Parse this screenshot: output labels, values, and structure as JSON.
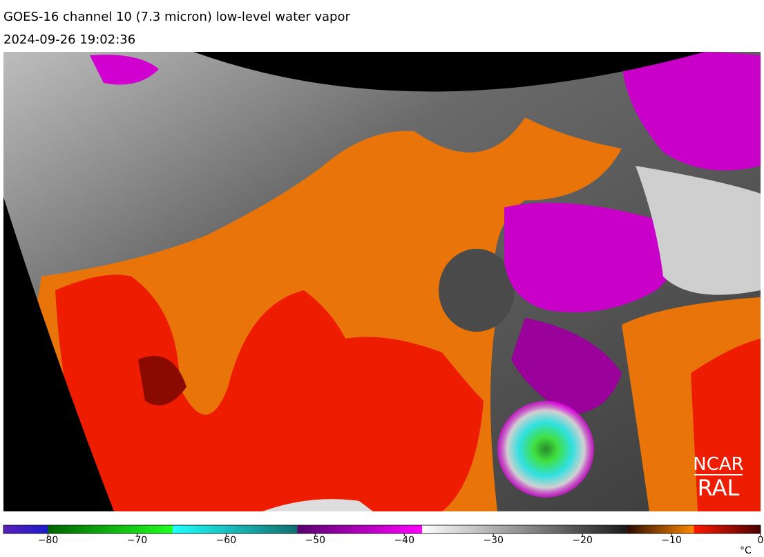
{
  "header": {
    "title": "GOES-16 channel 10 (7.3 micron) low-level water vapor",
    "timestamp": "2024-09-26 19:02:36"
  },
  "logo": {
    "top": "NCAR",
    "bottom": "RAL"
  },
  "colorbar": {
    "range": [
      -85,
      0
    ],
    "ticks": [
      {
        "value": -80,
        "label": "−80"
      },
      {
        "value": -70,
        "label": "−70"
      },
      {
        "value": -60,
        "label": "−60"
      },
      {
        "value": -50,
        "label": "−50"
      },
      {
        "value": -40,
        "label": "−40"
      },
      {
        "value": -30,
        "label": "−30"
      },
      {
        "value": -20,
        "label": "−20"
      },
      {
        "value": -10,
        "label": "−10"
      },
      0
    ],
    "unit": "°C",
    "segments": [
      {
        "from": -85,
        "to": -80,
        "colors": [
          "#5a20b8",
          "#1c1ccc"
        ]
      },
      {
        "from": -80,
        "to": -66,
        "colors": [
          "#006400",
          "#20ff20"
        ]
      },
      {
        "from": -66,
        "to": -52,
        "colors": [
          "#20ffff",
          "#106e6e"
        ]
      },
      {
        "from": -52,
        "to": -38,
        "colors": [
          "#5a0070",
          "#ff00ff"
        ]
      },
      {
        "from": -38,
        "to": -15,
        "colors": [
          "#ffffff",
          "#1a1a1a"
        ]
      },
      {
        "from": -15,
        "to": -7.5,
        "colors": [
          "#2a0a00",
          "#ff8800"
        ]
      },
      {
        "from": -7.5,
        "to": 0,
        "colors": [
          "#ff1a00",
          "#4a0000"
        ]
      }
    ]
  }
}
